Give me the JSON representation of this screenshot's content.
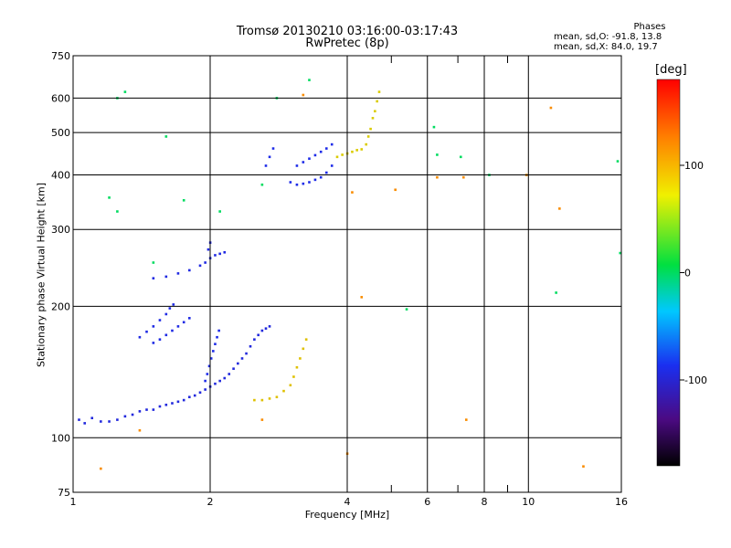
{
  "header": {
    "title_line1": "Tromsø 20130210 03:16:00-03:17:43",
    "title_line2": "RwPretec (8p)"
  },
  "stats": {
    "heading": "Phases",
    "line_o": "mean, sd,O: -91.8, 13.8",
    "line_x": "mean, sd,X:  84.0, 19.7"
  },
  "colorbar": {
    "unit_label": "[deg]",
    "range": [
      -180,
      180
    ],
    "ticks": [
      100,
      0,
      -100
    ],
    "tick_labels": [
      "100",
      "0",
      "-100"
    ]
  },
  "colors": {
    "blue_trace": "#1a2ff0",
    "yellow_trace": "#c8f000",
    "gridline": "#000000"
  },
  "chart_data": {
    "type": "scatter",
    "title": "Tromsø 20130210 03:16:00-03:17:43",
    "subtitle": "RwPretec (8p)",
    "xlabel": "Frequency [MHz]",
    "ylabel": "Stationary phase Virtual Height [km]",
    "x_scale": "log",
    "y_scale": "log",
    "xlim": [
      1,
      16
    ],
    "ylim": [
      75,
      750
    ],
    "x_ticks": [
      1,
      2,
      4,
      6,
      8,
      10,
      16
    ],
    "x_tick_labels": [
      "1",
      "2",
      "4",
      "6",
      "8",
      "10",
      "16"
    ],
    "y_ticks": [
      75,
      100,
      200,
      300,
      400,
      500,
      600,
      750
    ],
    "y_tick_labels": [
      "75",
      "100",
      "200",
      "300",
      "400",
      "500",
      "600",
      "750"
    ],
    "grid": true,
    "color_variable": "phase (deg)",
    "series": [
      {
        "phase": -95,
        "points": [
          [
            1.03,
            110
          ],
          [
            1.06,
            108
          ],
          [
            1.1,
            111
          ],
          [
            1.15,
            109
          ],
          [
            1.2,
            109
          ],
          [
            1.25,
            110
          ],
          [
            1.3,
            112
          ],
          [
            1.35,
            113
          ],
          [
            1.4,
            115
          ],
          [
            1.45,
            116
          ],
          [
            1.5,
            116
          ],
          [
            1.55,
            118
          ],
          [
            1.6,
            119
          ],
          [
            1.65,
            120
          ],
          [
            1.7,
            121
          ],
          [
            1.75,
            122
          ],
          [
            1.8,
            124
          ],
          [
            1.85,
            125
          ],
          [
            1.9,
            127
          ],
          [
            1.95,
            129
          ],
          [
            2.0,
            131
          ],
          [
            2.05,
            133
          ],
          [
            2.1,
            135
          ],
          [
            2.15,
            137
          ],
          [
            2.2,
            140
          ],
          [
            2.25,
            144
          ],
          [
            2.3,
            148
          ],
          [
            2.35,
            152
          ],
          [
            2.4,
            156
          ],
          [
            2.45,
            162
          ],
          [
            2.5,
            168
          ],
          [
            2.55,
            172
          ],
          [
            2.6,
            176
          ],
          [
            2.65,
            178
          ],
          [
            2.7,
            180
          ]
        ]
      },
      {
        "phase": -90,
        "points": [
          [
            1.95,
            135
          ],
          [
            1.97,
            140
          ],
          [
            1.99,
            146
          ],
          [
            2.01,
            152
          ],
          [
            2.03,
            158
          ],
          [
            2.05,
            164
          ],
          [
            2.07,
            170
          ],
          [
            2.09,
            176
          ]
        ]
      },
      {
        "phase": -92,
        "points": [
          [
            1.4,
            170
          ],
          [
            1.45,
            175
          ],
          [
            1.5,
            180
          ],
          [
            1.55,
            186
          ],
          [
            1.6,
            192
          ],
          [
            1.63,
            198
          ],
          [
            1.66,
            202
          ],
          [
            1.5,
            165
          ],
          [
            1.55,
            168
          ],
          [
            1.6,
            172
          ],
          [
            1.65,
            176
          ],
          [
            1.7,
            180
          ],
          [
            1.75,
            184
          ],
          [
            1.8,
            188
          ]
        ]
      },
      {
        "phase": -93,
        "points": [
          [
            1.5,
            232
          ],
          [
            1.6,
            234
          ],
          [
            1.7,
            238
          ],
          [
            1.8,
            242
          ],
          [
            1.9,
            248
          ],
          [
            1.95,
            252
          ],
          [
            2.0,
            258
          ],
          [
            2.05,
            262
          ],
          [
            2.1,
            264
          ],
          [
            2.15,
            266
          ],
          [
            1.98,
            270
          ],
          [
            2.0,
            280
          ]
        ]
      },
      {
        "phase": -90,
        "points": [
          [
            2.65,
            420
          ],
          [
            2.7,
            440
          ],
          [
            2.75,
            460
          ],
          [
            3.0,
            385
          ],
          [
            3.1,
            380
          ],
          [
            3.2,
            382
          ],
          [
            3.3,
            385
          ],
          [
            3.4,
            390
          ],
          [
            3.5,
            395
          ],
          [
            3.6,
            405
          ],
          [
            3.7,
            420
          ],
          [
            3.1,
            420
          ],
          [
            3.2,
            428
          ],
          [
            3.3,
            436
          ],
          [
            3.4,
            444
          ],
          [
            3.5,
            452
          ],
          [
            3.6,
            460
          ],
          [
            3.7,
            470
          ]
        ]
      },
      {
        "phase": 95,
        "points": [
          [
            2.5,
            122
          ],
          [
            2.6,
            122
          ],
          [
            2.7,
            123
          ],
          [
            2.8,
            124
          ],
          [
            2.9,
            128
          ],
          [
            3.0,
            132
          ],
          [
            3.05,
            138
          ],
          [
            3.1,
            145
          ],
          [
            3.15,
            152
          ],
          [
            3.2,
            160
          ],
          [
            3.25,
            168
          ]
        ]
      },
      {
        "phase": 90,
        "points": [
          [
            3.8,
            440
          ],
          [
            3.9,
            445
          ],
          [
            4.0,
            448
          ],
          [
            4.1,
            452
          ],
          [
            4.2,
            456
          ],
          [
            4.3,
            458
          ],
          [
            4.4,
            470
          ],
          [
            4.45,
            490
          ],
          [
            4.5,
            510
          ],
          [
            4.55,
            540
          ],
          [
            4.6,
            560
          ],
          [
            4.65,
            590
          ],
          [
            4.7,
            620
          ]
        ]
      },
      {
        "phase": 0,
        "points": [
          [
            1.25,
            600
          ],
          [
            1.3,
            620
          ],
          [
            1.2,
            355
          ],
          [
            1.25,
            330
          ],
          [
            1.6,
            490
          ],
          [
            1.75,
            350
          ],
          [
            2.1,
            330
          ],
          [
            2.8,
            600
          ],
          [
            5.4,
            197
          ],
          [
            6.2,
            515
          ],
          [
            6.3,
            445
          ],
          [
            7.1,
            440
          ],
          [
            8.2,
            400
          ],
          [
            11.5,
            215
          ],
          [
            15.7,
            430
          ],
          [
            15.9,
            265
          ],
          [
            3.3,
            660
          ],
          [
            1.5,
            252
          ],
          [
            2.6,
            380
          ]
        ]
      },
      {
        "phase": 120,
        "points": [
          [
            1.15,
            85
          ],
          [
            1.4,
            104
          ],
          [
            4.0,
            92
          ],
          [
            4.1,
            365
          ],
          [
            4.3,
            210
          ],
          [
            5.1,
            370
          ],
          [
            7.3,
            110
          ],
          [
            7.2,
            395
          ],
          [
            9.9,
            400
          ],
          [
            11.2,
            570
          ],
          [
            11.7,
            335
          ],
          [
            13.2,
            86
          ],
          [
            6.3,
            395
          ],
          [
            3.2,
            610
          ],
          [
            2.6,
            110
          ]
        ]
      }
    ]
  }
}
